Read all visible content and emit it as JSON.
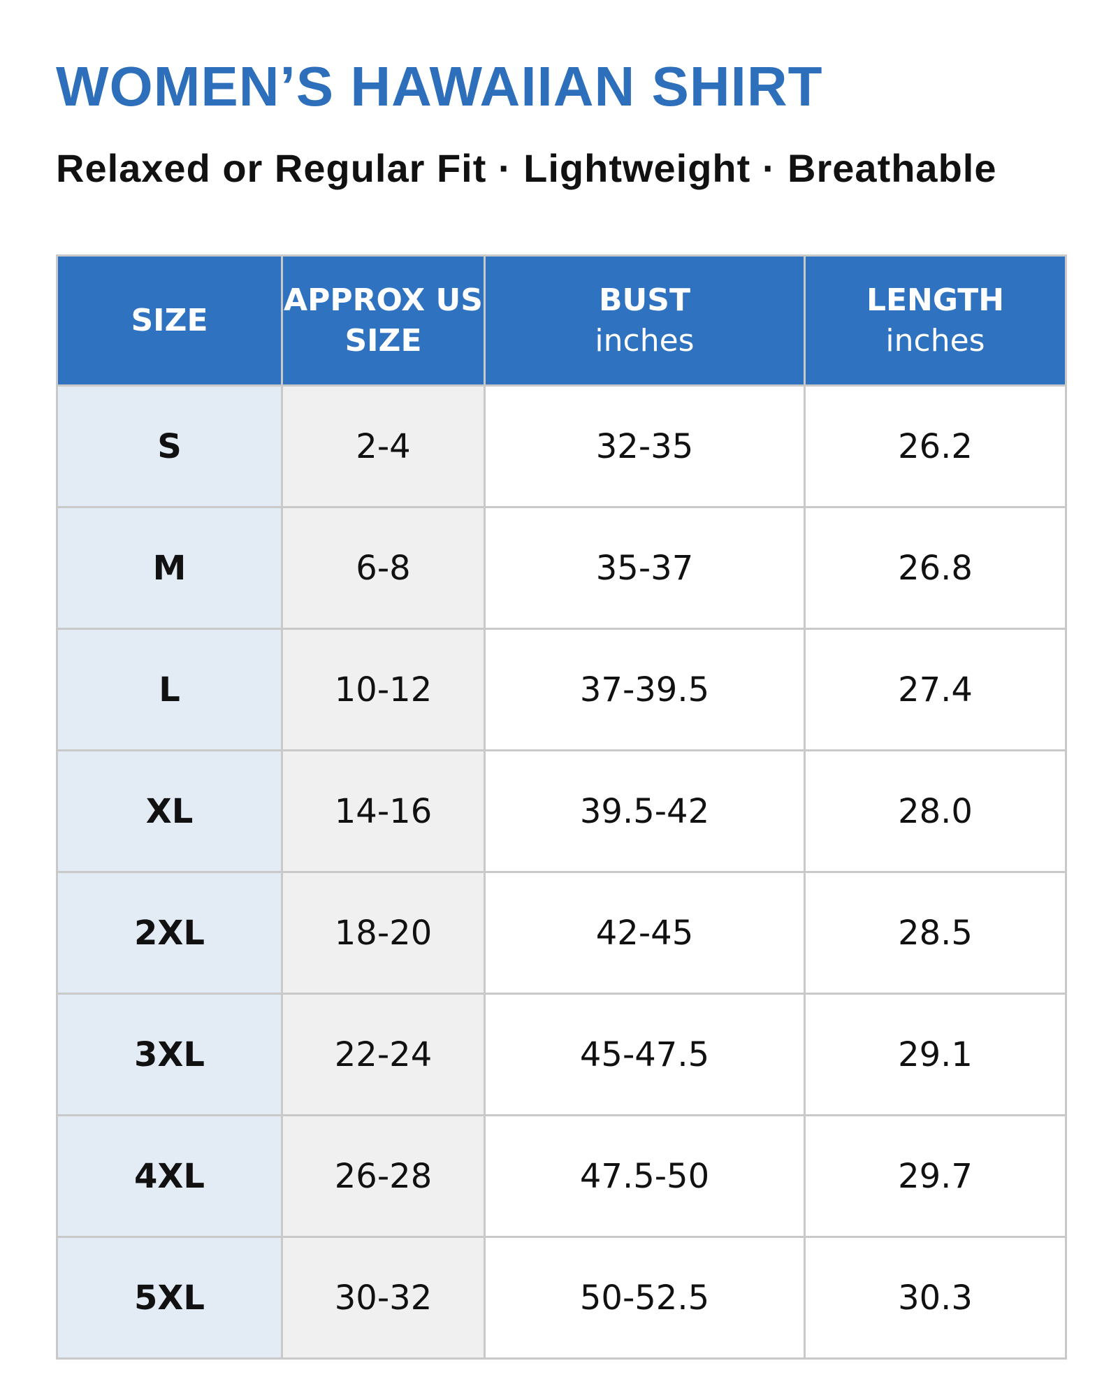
{
  "header": {
    "title": "WOMEN’S HAWAIIAN SHIRT",
    "subtitle": "Relaxed or Regular Fit · Lightweight · Breathable"
  },
  "table": {
    "columns": [
      {
        "title": "SIZE"
      },
      {
        "title": "APPROX US SIZE"
      },
      {
        "title": "BUST",
        "unit": "inches"
      },
      {
        "title": "LENGTH",
        "unit": "inches"
      }
    ],
    "rows": [
      [
        "S",
        "2-4",
        "32-35",
        "26.2"
      ],
      [
        "M",
        "6-8",
        "35-37",
        "26.8"
      ],
      [
        "L",
        "10-12",
        "37-39.5",
        "27.4"
      ],
      [
        "XL",
        "14-16",
        "39.5-42",
        "28.0"
      ],
      [
        "2XL",
        "18-20",
        "42-45",
        "28.5"
      ],
      [
        "3XL",
        "22-24",
        "45-47.5",
        "29.1"
      ],
      [
        "4XL",
        "26-28",
        "47.5-50",
        "29.7"
      ],
      [
        "5XL",
        "30-32",
        "50-52.5",
        "30.3"
      ]
    ]
  }
}
